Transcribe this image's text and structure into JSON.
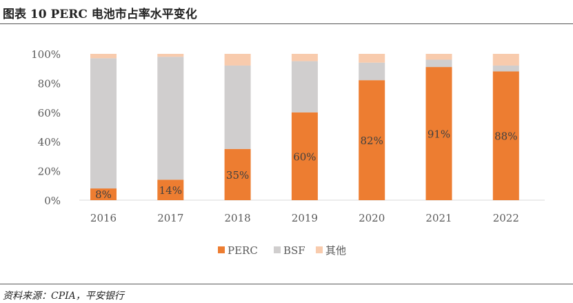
{
  "title": "图表 10    PERC 电池市占率水平变化",
  "source": "资料来源：CPIA，平安银行",
  "chart_data": {
    "type": "bar",
    "stacked": true,
    "categories": [
      "2016",
      "2017",
      "2018",
      "2019",
      "2020",
      "2021",
      "2022"
    ],
    "series": [
      {
        "name": "PERC",
        "color": "#ED7D31",
        "values": [
          8,
          14,
          35,
          60,
          82,
          91,
          88
        ],
        "labels": [
          "8%",
          "14%",
          "35%",
          "60%",
          "82%",
          "91%",
          "88%"
        ]
      },
      {
        "name": "BSF",
        "color": "#D0CECE",
        "values": [
          89,
          84,
          57,
          35,
          12,
          5,
          4
        ]
      },
      {
        "name": "其他",
        "color": "#F8CBAD",
        "values": [
          3,
          2,
          8,
          5,
          6,
          4,
          8
        ]
      }
    ],
    "yticks": [
      "0%",
      "20%",
      "40%",
      "60%",
      "80%",
      "100%"
    ],
    "ylim": [
      0,
      100
    ],
    "grid": false,
    "legend": "bottom"
  }
}
